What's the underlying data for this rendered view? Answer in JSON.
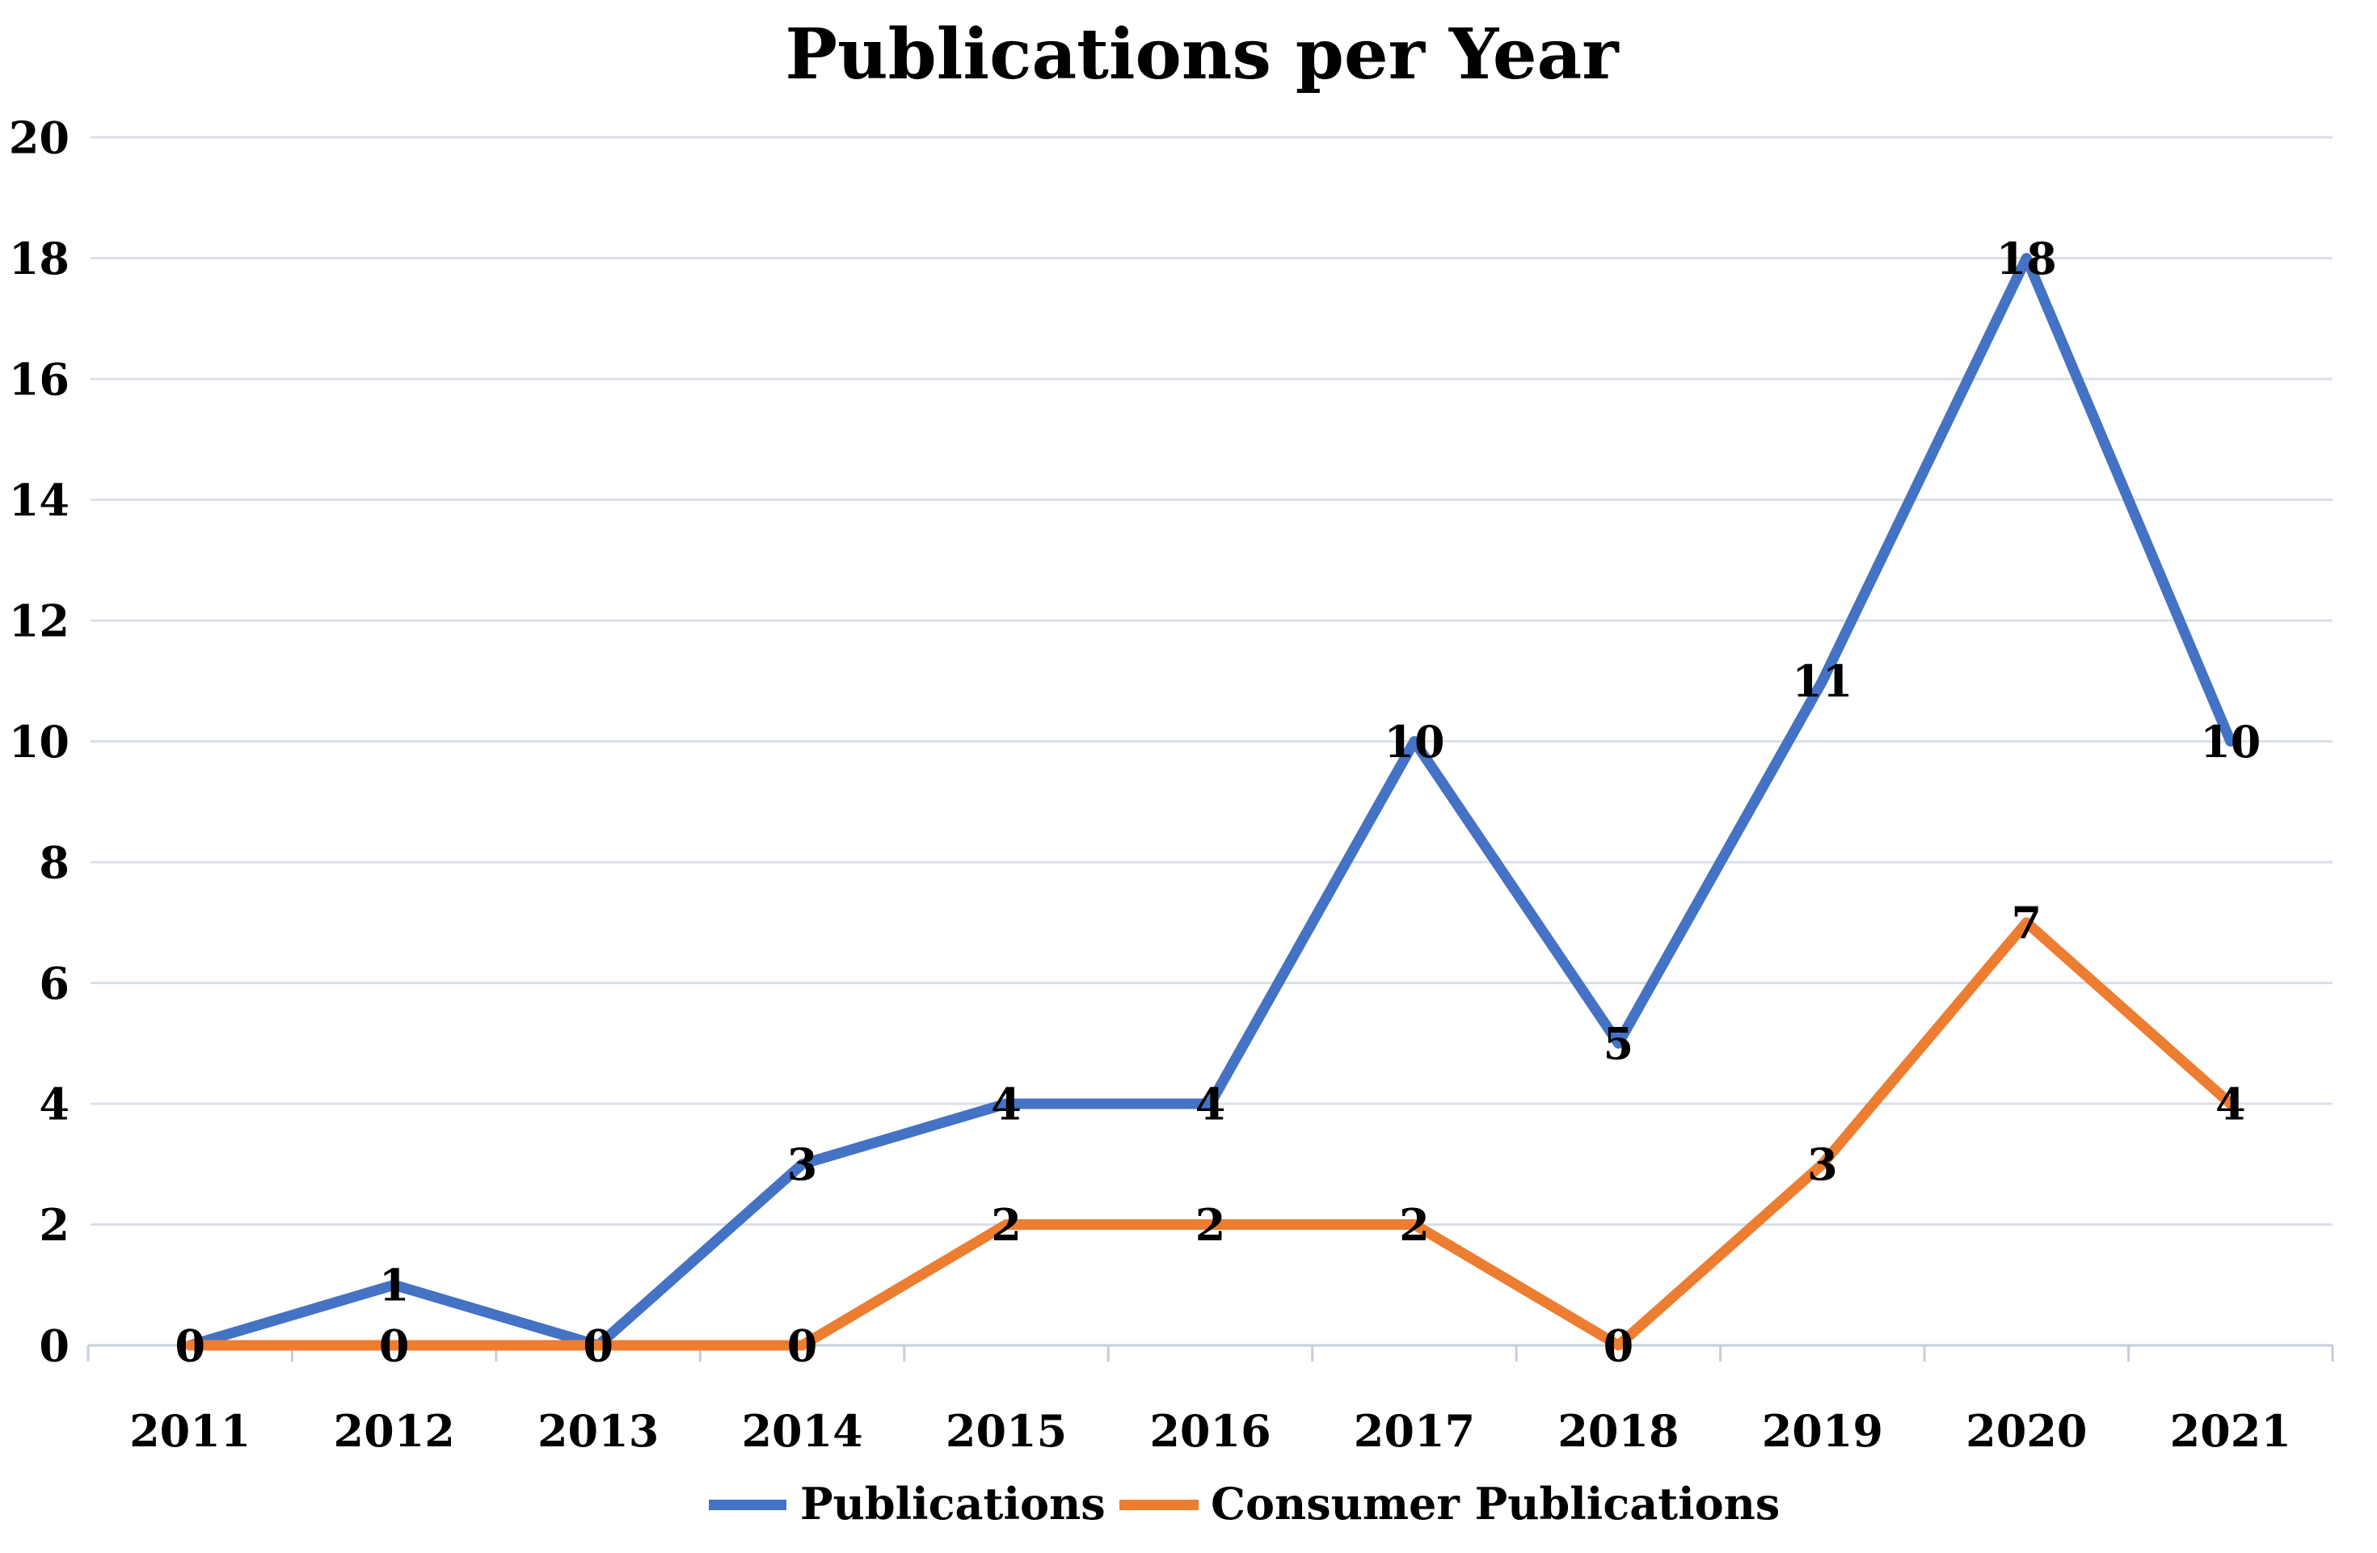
{
  "title": "Publications per Year",
  "colors": {
    "publications_line": "#4472C4",
    "consumer_publications_line": "#ED7D31",
    "gridline": "#dadfe9",
    "axis_line": "#c6cdda",
    "text": "#000000",
    "background": "#ffffff"
  },
  "legend": {
    "position": "bottom",
    "items": [
      {
        "label": "Publications",
        "color": "#4472C4"
      },
      {
        "label": "Consumer Publications",
        "color": "#ED7D31"
      }
    ]
  },
  "y_axis": {
    "min": 0,
    "max": 20,
    "tick_step": 2,
    "tick_labels": [
      "0",
      "2",
      "4",
      "6",
      "8",
      "10",
      "12",
      "14",
      "16",
      "18",
      "20"
    ]
  },
  "x_axis": {
    "tick_labels": [
      "2011",
      "2012",
      "2013",
      "2014",
      "2015",
      "2016",
      "2017",
      "2018",
      "2019",
      "2020",
      "2021"
    ]
  },
  "chart_data": {
    "type": "line",
    "title": "Publications per Year",
    "categories": [
      "2011",
      "2012",
      "2013",
      "2014",
      "2015",
      "2016",
      "2017",
      "2018",
      "2019",
      "2020",
      "2021"
    ],
    "series": [
      {
        "name": "Publications",
        "color": "#4472C4",
        "values": [
          0,
          1,
          0,
          3,
          4,
          4,
          10,
          5,
          11,
          18,
          10
        ]
      },
      {
        "name": "Consumer Publications",
        "color": "#ED7D31",
        "values": [
          0,
          0,
          0,
          0,
          2,
          2,
          2,
          0,
          3,
          7,
          4
        ]
      }
    ],
    "xlabel": "",
    "ylabel": "",
    "ylim": [
      0,
      20
    ],
    "y_tick_step": 2,
    "grid": "horizontal",
    "data_labels": "center",
    "legend_position": "bottom"
  }
}
